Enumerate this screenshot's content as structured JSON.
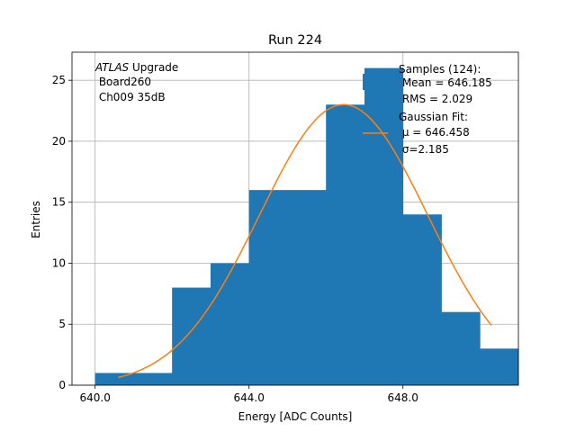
{
  "chart_data": {
    "type": "bar",
    "title": "Run 224",
    "xlabel": "Energy [ADC Counts]",
    "ylabel": "Entries",
    "xlim": [
      639.4,
      651.0
    ],
    "ylim": [
      0,
      27.3
    ],
    "grid": true,
    "xticks": [
      640.0,
      644.0,
      648.0
    ],
    "xtick_labels": [
      "640.0",
      "644.0",
      "648.0"
    ],
    "yticks": [
      0,
      5,
      10,
      15,
      20,
      25
    ],
    "ytick_labels": [
      "0",
      "5",
      "10",
      "15",
      "20",
      "25"
    ],
    "histogram": {
      "bin_edges": [
        640,
        641,
        642,
        643,
        644,
        645,
        646,
        647,
        648,
        649,
        650,
        651
      ],
      "counts": [
        1,
        1,
        8,
        10,
        16,
        16,
        23,
        26,
        14,
        6,
        3
      ],
      "color": "#1f77b4"
    },
    "fit": {
      "mu": 646.458,
      "sigma": 2.185,
      "amplitude": 23.0,
      "x_range": [
        640.6,
        650.3
      ],
      "color": "#ff7f0e"
    },
    "annotation_lines": [
      {
        "italic": "ATLAS",
        "rest": " Upgrade"
      },
      {
        "italic": "",
        "rest": " Board260"
      },
      {
        "italic": "",
        "rest": " Ch009 35dB"
      }
    ],
    "legend": {
      "placement": "top-right",
      "samples_lines": [
        "Samples (124):",
        " Mean = 646.185",
        " RMS = 2.029"
      ],
      "fit_lines": [
        "Gaussian Fit:",
        " μ = 646.458",
        " σ=2.185"
      ]
    }
  }
}
